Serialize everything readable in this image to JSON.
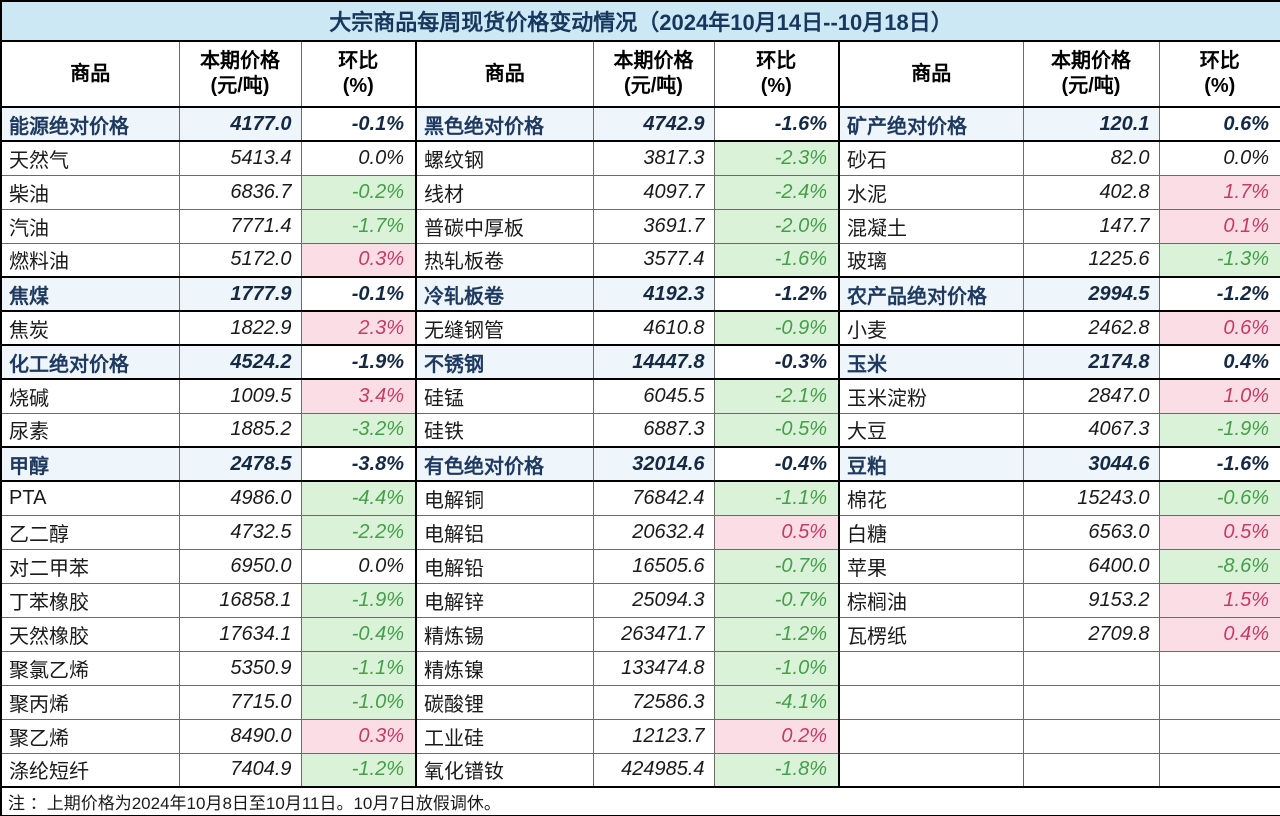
{
  "colors": {
    "title_bg": "#cde8f5",
    "title_text": "#17375e",
    "increase_bg": "#fbdde6",
    "increase_text": "#c63a68",
    "decrease_bg": "#d9f2d8",
    "decrease_text": "#459e4a",
    "category_bg": "#eef5fb",
    "category_text": "#1f3a60",
    "border": "#6b6b6b"
  },
  "chart_data": {
    "type": "table",
    "title": "大宗商品每周现货价格变动情况（2024年10月14日--10月18日）",
    "note": "注 ：上期价格为2024年10月8日至10月11日。10月7日放假调休。",
    "header": {
      "commodity": "商品",
      "price": "本期价格",
      "price_unit": "(元/吨)",
      "pct": "环比",
      "pct_unit": "(%)"
    },
    "groups": [
      {
        "rows": [
          {
            "name": "能源绝对价格",
            "price": "4177.0",
            "pct": "-0.1%",
            "kind": "category",
            "trend": "none"
          },
          {
            "name": "天然气",
            "price": "5413.4",
            "pct": "0.0%",
            "kind": "item",
            "trend": "flat"
          },
          {
            "name": "柴油",
            "price": "6836.7",
            "pct": "-0.2%",
            "kind": "item",
            "trend": "down"
          },
          {
            "name": "汽油",
            "price": "7771.4",
            "pct": "-1.7%",
            "kind": "item",
            "trend": "down"
          },
          {
            "name": "燃料油",
            "price": "5172.0",
            "pct": "0.3%",
            "kind": "item",
            "trend": "up"
          },
          {
            "name": "焦煤",
            "price": "1777.9",
            "pct": "-0.1%",
            "kind": "item",
            "trend": "down"
          },
          {
            "name": "焦炭",
            "price": "1822.9",
            "pct": "2.3%",
            "kind": "item",
            "trend": "up"
          },
          {
            "name": "化工绝对价格",
            "price": "4524.2",
            "pct": "-1.9%",
            "kind": "category",
            "trend": "none"
          },
          {
            "name": "烧碱",
            "price": "1009.5",
            "pct": "3.4%",
            "kind": "item",
            "trend": "up"
          },
          {
            "name": "尿素",
            "price": "1885.2",
            "pct": "-3.2%",
            "kind": "item",
            "trend": "down"
          },
          {
            "name": "甲醇",
            "price": "2478.5",
            "pct": "-3.8%",
            "kind": "item",
            "trend": "down"
          },
          {
            "name": "PTA",
            "price": "4986.0",
            "pct": "-4.4%",
            "kind": "item",
            "trend": "down"
          },
          {
            "name": "乙二醇",
            "price": "4732.5",
            "pct": "-2.2%",
            "kind": "item",
            "trend": "down"
          },
          {
            "name": "对二甲苯",
            "price": "6950.0",
            "pct": "0.0%",
            "kind": "item",
            "trend": "flat"
          },
          {
            "name": "丁苯橡胶",
            "price": "16858.1",
            "pct": "-1.9%",
            "kind": "item",
            "trend": "down"
          },
          {
            "name": "天然橡胶",
            "price": "17634.1",
            "pct": "-0.4%",
            "kind": "item",
            "trend": "down"
          },
          {
            "name": "聚氯乙烯",
            "price": "5350.9",
            "pct": "-1.1%",
            "kind": "item",
            "trend": "down"
          },
          {
            "name": "聚丙烯",
            "price": "7715.0",
            "pct": "-1.0%",
            "kind": "item",
            "trend": "down"
          },
          {
            "name": "聚乙烯",
            "price": "8490.0",
            "pct": "0.3%",
            "kind": "item",
            "trend": "up"
          },
          {
            "name": "涤纶短纤",
            "price": "7404.9",
            "pct": "-1.2%",
            "kind": "item",
            "trend": "down"
          }
        ]
      },
      {
        "rows": [
          {
            "name": "黑色绝对价格",
            "price": "4742.9",
            "pct": "-1.6%",
            "kind": "category",
            "trend": "none"
          },
          {
            "name": "螺纹钢",
            "price": "3817.3",
            "pct": "-2.3%",
            "kind": "item",
            "trend": "down"
          },
          {
            "name": "线材",
            "price": "4097.7",
            "pct": "-2.4%",
            "kind": "item",
            "trend": "down"
          },
          {
            "name": "普碳中厚板",
            "price": "3691.7",
            "pct": "-2.0%",
            "kind": "item",
            "trend": "down"
          },
          {
            "name": "热轧板卷",
            "price": "3577.4",
            "pct": "-1.6%",
            "kind": "item",
            "trend": "down"
          },
          {
            "name": "冷轧板卷",
            "price": "4192.3",
            "pct": "-1.2%",
            "kind": "item",
            "trend": "down"
          },
          {
            "name": "无缝钢管",
            "price": "4610.8",
            "pct": "-0.9%",
            "kind": "item",
            "trend": "down"
          },
          {
            "name": "不锈钢",
            "price": "14447.8",
            "pct": "-0.3%",
            "kind": "item",
            "trend": "down"
          },
          {
            "name": "硅锰",
            "price": "6045.5",
            "pct": "-2.1%",
            "kind": "item",
            "trend": "down"
          },
          {
            "name": "硅铁",
            "price": "6887.3",
            "pct": "-0.5%",
            "kind": "item",
            "trend": "down"
          },
          {
            "name": "有色绝对价格",
            "price": "32014.6",
            "pct": "-0.4%",
            "kind": "category",
            "trend": "none"
          },
          {
            "name": "电解铜",
            "price": "76842.4",
            "pct": "-1.1%",
            "kind": "item",
            "trend": "down"
          },
          {
            "name": "电解铝",
            "price": "20632.4",
            "pct": "0.5%",
            "kind": "item",
            "trend": "up"
          },
          {
            "name": "电解铅",
            "price": "16505.6",
            "pct": "-0.7%",
            "kind": "item",
            "trend": "down"
          },
          {
            "name": "电解锌",
            "price": "25094.3",
            "pct": "-0.7%",
            "kind": "item",
            "trend": "down"
          },
          {
            "name": "精炼锡",
            "price": "263471.7",
            "pct": "-1.2%",
            "kind": "item",
            "trend": "down"
          },
          {
            "name": "精炼镍",
            "price": "133474.8",
            "pct": "-1.0%",
            "kind": "item",
            "trend": "down"
          },
          {
            "name": "碳酸锂",
            "price": "72586.3",
            "pct": "-4.1%",
            "kind": "item",
            "trend": "down"
          },
          {
            "name": "工业硅",
            "price": "12123.7",
            "pct": "0.2%",
            "kind": "item",
            "trend": "up"
          },
          {
            "name": "氧化镨钕",
            "price": "424985.4",
            "pct": "-1.8%",
            "kind": "item",
            "trend": "down"
          }
        ]
      },
      {
        "rows": [
          {
            "name": "矿产绝对价格",
            "price": "120.1",
            "pct": "0.6%",
            "kind": "category",
            "trend": "none"
          },
          {
            "name": "砂石",
            "price": "82.0",
            "pct": "0.0%",
            "kind": "item",
            "trend": "flat"
          },
          {
            "name": "水泥",
            "price": "402.8",
            "pct": "1.7%",
            "kind": "item",
            "trend": "up"
          },
          {
            "name": "混凝土",
            "price": "147.7",
            "pct": "0.1%",
            "kind": "item",
            "trend": "up"
          },
          {
            "name": "玻璃",
            "price": "1225.6",
            "pct": "-1.3%",
            "kind": "item",
            "trend": "down"
          },
          {
            "name": "农产品绝对价格",
            "price": "2994.5",
            "pct": "-1.2%",
            "kind": "category",
            "trend": "none"
          },
          {
            "name": "小麦",
            "price": "2462.8",
            "pct": "0.6%",
            "kind": "item",
            "trend": "up"
          },
          {
            "name": "玉米",
            "price": "2174.8",
            "pct": "0.4%",
            "kind": "item",
            "trend": "up"
          },
          {
            "name": "玉米淀粉",
            "price": "2847.0",
            "pct": "1.0%",
            "kind": "item",
            "trend": "up"
          },
          {
            "name": "大豆",
            "price": "4067.3",
            "pct": "-1.9%",
            "kind": "item",
            "trend": "down"
          },
          {
            "name": "豆粕",
            "price": "3044.6",
            "pct": "-1.6%",
            "kind": "item",
            "trend": "down"
          },
          {
            "name": "棉花",
            "price": "15243.0",
            "pct": "-0.6%",
            "kind": "item",
            "trend": "down"
          },
          {
            "name": "白糖",
            "price": "6563.0",
            "pct": "0.5%",
            "kind": "item",
            "trend": "up"
          },
          {
            "name": "苹果",
            "price": "6400.0",
            "pct": "-8.6%",
            "kind": "item",
            "trend": "down"
          },
          {
            "name": "棕榈油",
            "price": "9153.2",
            "pct": "1.5%",
            "kind": "item",
            "trend": "up"
          },
          {
            "name": "瓦楞纸",
            "price": "2709.8",
            "pct": "0.4%",
            "kind": "item",
            "trend": "up"
          },
          {
            "name": "",
            "price": "",
            "pct": "",
            "kind": "empty",
            "trend": "flat"
          },
          {
            "name": "",
            "price": "",
            "pct": "",
            "kind": "empty",
            "trend": "flat"
          },
          {
            "name": "",
            "price": "",
            "pct": "",
            "kind": "empty",
            "trend": "flat"
          },
          {
            "name": "",
            "price": "",
            "pct": "",
            "kind": "empty",
            "trend": "flat"
          }
        ]
      }
    ]
  }
}
